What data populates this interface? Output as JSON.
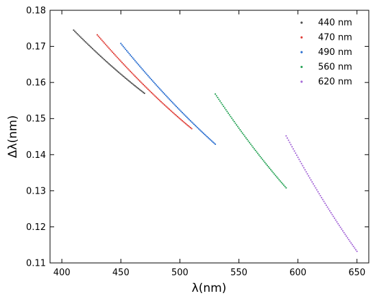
{
  "chart_data": {
    "type": "scatter",
    "xlabel": "λ(nm)",
    "ylabel": "Δλ(nm)",
    "xlim": [
      390,
      660
    ],
    "ylim": [
      0.11,
      0.18
    ],
    "xticks": [
      400,
      450,
      500,
      550,
      600,
      650
    ],
    "yticks": [
      0.11,
      0.12,
      0.13,
      0.14,
      0.15,
      0.16,
      0.17,
      0.18
    ],
    "ytick_labels": [
      "0.11",
      "0.12",
      "0.13",
      "0.14",
      "0.15",
      "0.16",
      "0.17",
      "0.18"
    ],
    "grid": false,
    "legend": "top-right",
    "series": [
      {
        "name": "440 nm",
        "color": "#4d4d4d",
        "x_range": [
          410,
          470
        ],
        "y_start": 0.1745,
        "y_end": 0.157,
        "curvature": 0.0012
      },
      {
        "name": "470 nm",
        "color": "#e0403a",
        "x_range": [
          430,
          510
        ],
        "y_start": 0.1732,
        "y_end": 0.1472,
        "curvature": 0.0022
      },
      {
        "name": "490 nm",
        "color": "#2b6fd0",
        "x_range": [
          450,
          530
        ],
        "y_start": 0.1708,
        "y_end": 0.1429,
        "curvature": 0.0022
      },
      {
        "name": "560 nm",
        "color": "#2ca55a",
        "x_range": [
          530,
          590
        ],
        "y_start": 0.1568,
        "y_end": 0.1308,
        "curvature": 0.0018
      },
      {
        "name": "620 nm",
        "color": "#a66ad8",
        "x_range": [
          590,
          650
        ],
        "y_start": 0.1452,
        "y_end": 0.1132,
        "curvature": 0.0022
      }
    ]
  }
}
